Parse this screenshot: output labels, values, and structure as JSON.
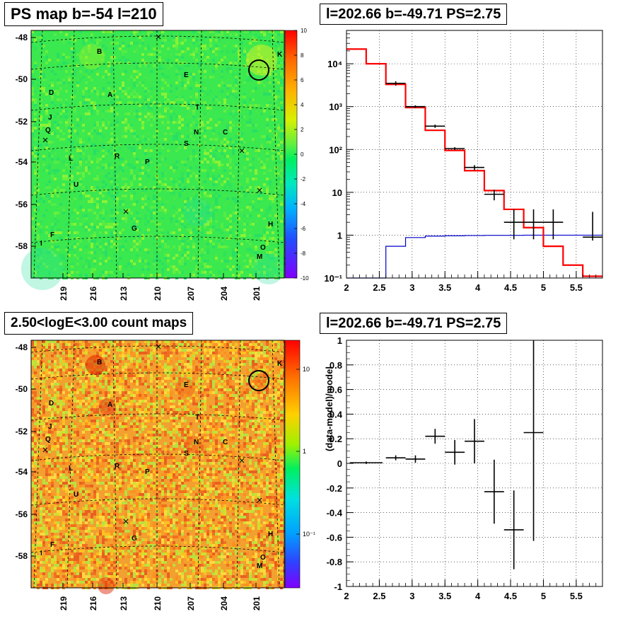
{
  "panels": {
    "top_left_title": "PS map b=-54 l=210",
    "top_right_title": "l=202.66 b=-49.71 PS=2.75",
    "bottom_left_title": "2.50<logE<3.00 count maps",
    "bottom_right_title": "l=202.66 b=-49.71 PS=2.75"
  },
  "colors": {
    "data": "#000000",
    "model": "#ff0000",
    "background_model": "#0000cc",
    "map_bg_top": "#33e64d",
    "map_bg_bottom": "#f0a030"
  },
  "chart_data": [
    {
      "type": "heatmap",
      "title": "PS map b=-54 l=210",
      "x_ticks": [
        "219",
        "216",
        "213",
        "210",
        "207",
        "204",
        "201"
      ],
      "y_ticks": [
        "-48",
        "-50",
        "-52",
        "-54",
        "-56",
        "-58"
      ],
      "colorbar_ticks": [
        "10",
        "8",
        "6",
        "4",
        "2",
        "0",
        "-2",
        "-4",
        "-6",
        "-8",
        "-10"
      ],
      "colorbar_range": [
        -10,
        10
      ],
      "sources": [
        {
          "label": "B"
        },
        {
          "label": "K"
        },
        {
          "label": "D"
        },
        {
          "label": "A"
        },
        {
          "label": "E"
        },
        {
          "label": "J"
        },
        {
          "label": "T"
        },
        {
          "label": "Q"
        },
        {
          "label": "N"
        },
        {
          "label": "C"
        },
        {
          "label": "S"
        },
        {
          "label": "L"
        },
        {
          "label": "R"
        },
        {
          "label": "P"
        },
        {
          "label": "U"
        },
        {
          "label": "G"
        },
        {
          "label": "H"
        },
        {
          "label": "F"
        },
        {
          "label": "I"
        },
        {
          "label": "O"
        },
        {
          "label": "M"
        }
      ]
    },
    {
      "type": "line",
      "title": "l=202.66 b=-49.71 PS=2.75",
      "xlim": [
        2,
        5.9
      ],
      "ylim": [
        0.1,
        60000
      ],
      "yscale": "log",
      "x_ticks": [
        "2",
        "2.5",
        "3",
        "3.5",
        "4",
        "4.5",
        "5",
        "5.5"
      ],
      "y_ticks": [
        "10^-1",
        "1",
        "10",
        "10^2",
        "10^3",
        "10^4"
      ],
      "grid": true,
      "series": [
        {
          "values_kind": "data points with error bars",
          "x": [
            2.15,
            2.45,
            2.75,
            3.05,
            3.35,
            3.65,
            3.95,
            4.25,
            4.55,
            4.85,
            5.15,
            5.75
          ],
          "y": [
            null,
            null,
            3500,
            1000,
            350,
            105,
            38,
            9,
            2,
            2,
            2,
            0.9
          ],
          "y_err_low": [
            null,
            null,
            3100,
            930,
            320,
            97,
            33,
            6.5,
            0.8,
            0.8,
            0.8,
            0.75
          ],
          "y_err_high": [
            null,
            null,
            3900,
            1070,
            380,
            113,
            43,
            11.5,
            4,
            4,
            4,
            3.5
          ]
        },
        {
          "values_kind": "model histogram",
          "bin_edges": [
            2.0,
            2.3,
            2.6,
            2.9,
            3.2,
            3.5,
            3.8,
            4.1,
            4.4,
            4.7,
            5.0,
            5.3,
            5.6,
            5.9
          ],
          "values": [
            22000,
            10000,
            3300,
            950,
            280,
            95,
            32,
            11,
            4,
            1.5,
            0.55,
            0.2,
            0.11
          ]
        },
        {
          "values_kind": "background histogram",
          "bin_edges": [
            2.0,
            2.3,
            2.6,
            2.9,
            3.2,
            3.5,
            3.8,
            4.1,
            4.4,
            4.7,
            5.0,
            5.3,
            5.6,
            5.9
          ],
          "values": [
            0.05,
            0.1,
            0.55,
            0.88,
            0.95,
            0.97,
            0.98,
            0.99,
            0.99,
            1.0,
            1.0,
            1.0,
            1.0
          ]
        }
      ]
    },
    {
      "type": "heatmap",
      "title": "2.50<logE<3.00 count maps",
      "x_ticks": [
        "219",
        "216",
        "213",
        "210",
        "207",
        "204",
        "201"
      ],
      "y_ticks": [
        "-48",
        "-50",
        "-52",
        "-54",
        "-56",
        "-58"
      ],
      "colorbar_ticks": [
        "10",
        "1",
        "10^-1"
      ],
      "colorbar_scale": "log"
    },
    {
      "type": "scatter",
      "title": "l=202.66 b=-49.71 PS=2.75",
      "ylabel": "(data-model)/model",
      "xlim": [
        2,
        5.9
      ],
      "ylim": [
        -1,
        1
      ],
      "x_ticks": [
        "2",
        "2.5",
        "3",
        "3.5",
        "4",
        "4.5",
        "5",
        "5.5"
      ],
      "y_ticks": [
        "1",
        "0.8",
        "0.6",
        "0.4",
        "0.2",
        "0",
        "-0.2",
        "-0.4",
        "-0.6",
        "-0.8",
        "-1"
      ],
      "grid": true,
      "points": [
        {
          "x": 2.3,
          "xerr": 0.25,
          "y": 0.005,
          "yerr": 0.01
        },
        {
          "x": 2.75,
          "xerr": 0.15,
          "y": 0.045,
          "yerr": 0.02
        },
        {
          "x": 3.05,
          "xerr": 0.15,
          "y": 0.035,
          "yerr": 0.03
        },
        {
          "x": 3.35,
          "xerr": 0.15,
          "y": 0.22,
          "yerr": 0.06
        },
        {
          "x": 3.65,
          "xerr": 0.15,
          "y": 0.09,
          "yerr": 0.1
        },
        {
          "x": 3.95,
          "xerr": 0.15,
          "y": 0.18,
          "yerr": 0.18
        },
        {
          "x": 4.25,
          "xerr": 0.15,
          "y": -0.23,
          "yerr": 0.26
        },
        {
          "x": 4.55,
          "xerr": 0.15,
          "y": -0.54,
          "yerr": 0.32
        },
        {
          "x": 4.85,
          "xerr": 0.15,
          "y": 0.25,
          "yerr_low": 0.88,
          "yerr_high": 0.75
        }
      ]
    }
  ]
}
